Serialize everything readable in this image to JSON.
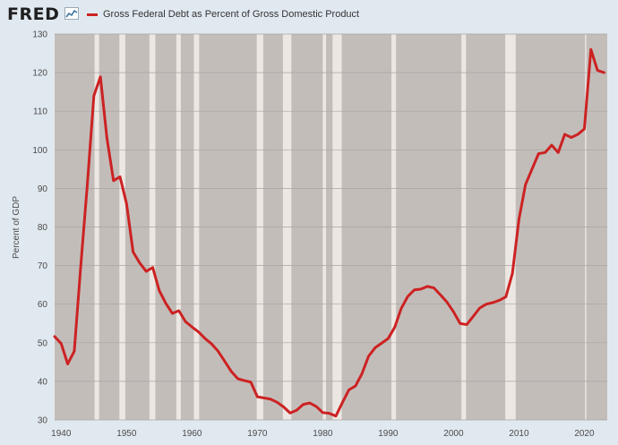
{
  "header": {
    "logo": "FRED",
    "legend_label": "Gross Federal Debt as Percent of Gross Domestic Product",
    "series_color": "#cc2222"
  },
  "chart_data": {
    "type": "line",
    "title": "",
    "xlabel": "",
    "ylabel": "Percent of GDP",
    "xlim": [
      1939,
      2023.5
    ],
    "ylim": [
      30,
      130
    ],
    "x_ticks": [
      1940,
      1950,
      1960,
      1970,
      1980,
      1990,
      2000,
      2010,
      2020
    ],
    "y_ticks": [
      30,
      40,
      50,
      60,
      70,
      80,
      90,
      100,
      110,
      120,
      130
    ],
    "grid": true,
    "background_shading": "gray bands for non-recession periods",
    "recessions": [
      [
        1945.1,
        1945.8
      ],
      [
        1948.9,
        1949.8
      ],
      [
        1953.5,
        1954.4
      ],
      [
        1957.6,
        1958.3
      ],
      [
        1960.3,
        1961.1
      ],
      [
        1969.9,
        1970.9
      ],
      [
        1973.9,
        1975.2
      ],
      [
        1980.0,
        1980.5
      ],
      [
        1981.5,
        1982.9
      ],
      [
        1990.5,
        1991.2
      ],
      [
        2001.2,
        2001.9
      ],
      [
        2007.9,
        2009.5
      ],
      [
        2020.1,
        2020.3
      ]
    ],
    "series": [
      {
        "name": "Gross Federal Debt as Percent of Gross Domestic Product",
        "x": [
          1939,
          1940,
          1941,
          1942,
          1943,
          1944,
          1945,
          1946,
          1947,
          1948,
          1949,
          1950,
          1951,
          1952,
          1953,
          1954,
          1955,
          1956,
          1957,
          1958,
          1959,
          1960,
          1961,
          1962,
          1963,
          1964,
          1965,
          1966,
          1967,
          1968,
          1969,
          1970,
          1971,
          1972,
          1973,
          1974,
          1975,
          1976,
          1977,
          1978,
          1979,
          1980,
          1981,
          1982,
          1983,
          1984,
          1985,
          1986,
          1987,
          1988,
          1989,
          1990,
          1991,
          1992,
          1993,
          1994,
          1995,
          1996,
          1997,
          1998,
          1999,
          2000,
          2001,
          2002,
          2003,
          2004,
          2005,
          2006,
          2007,
          2008,
          2009,
          2010,
          2011,
          2012,
          2013,
          2014,
          2015,
          2016,
          2017,
          2018,
          2019,
          2020,
          2021,
          2022,
          2023
        ],
        "y": [
          51.6,
          49.8,
          44.5,
          47.8,
          70.0,
          91.0,
          114.0,
          118.9,
          103.0,
          92.0,
          93.0,
          86.0,
          73.5,
          70.7,
          68.5,
          69.5,
          63.5,
          60.2,
          57.6,
          58.3,
          55.5,
          54.1,
          52.8,
          51.1,
          49.7,
          47.8,
          45.2,
          42.6,
          40.7,
          40.2,
          39.8,
          36.0,
          35.7,
          35.4,
          34.6,
          33.4,
          31.8,
          32.5,
          34.0,
          34.4,
          33.5,
          31.9,
          31.7,
          31.0,
          34.5,
          37.8,
          38.8,
          42.0,
          46.5,
          48.7,
          49.9,
          51.1,
          54.0,
          58.9,
          62.0,
          63.7,
          63.9,
          64.6,
          64.2,
          62.4,
          60.5,
          58.0,
          55.0,
          54.7,
          56.8,
          59.0,
          60.0,
          60.4,
          61.0,
          61.9,
          68.0,
          82.0,
          91.0,
          95.0,
          99.0,
          99.3,
          101.2,
          99.3,
          104.0,
          103.2,
          104.0,
          105.4,
          126.0,
          120.6,
          120.0
        ]
      }
    ]
  }
}
